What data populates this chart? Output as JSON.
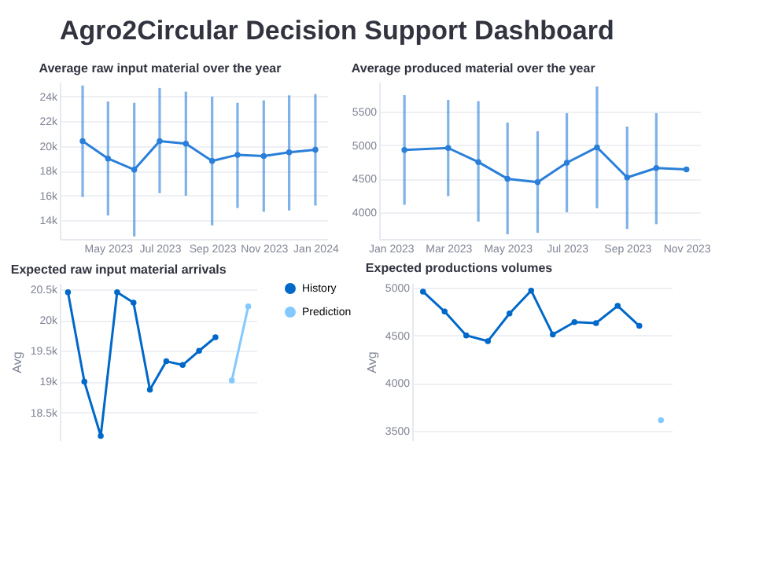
{
  "chart_data": [
    {
      "type": "other",
      "title": "Agro2Circular Decision Support Dashboard"
    },
    {
      "type": "line",
      "title": "Average raw input material over the year",
      "x": [
        "2023-04",
        "2023-05",
        "2023-06",
        "2023-07",
        "2023-08",
        "2023-09",
        "2023-10",
        "2023-11",
        "2023-12",
        "2024-01"
      ],
      "values": [
        20400,
        19000,
        18100,
        20400,
        20200,
        18800,
        19300,
        19200,
        19500,
        19700
      ],
      "errors": [
        [
          15900,
          24900
        ],
        [
          14400,
          23600
        ],
        [
          12700,
          23500
        ],
        [
          16200,
          24700
        ],
        [
          16000,
          24400
        ],
        [
          13600,
          24000
        ],
        [
          15000,
          23500
        ],
        [
          14700,
          23700
        ],
        [
          14800,
          24100
        ],
        [
          15200,
          24200
        ]
      ],
      "color": "#2a7fd9",
      "marker": "circle",
      "grid": "y",
      "xlim": [
        "2023-03-05",
        "2024-01-15"
      ],
      "xticks": [
        {
          "value": "2023-05",
          "label": "May 2023"
        },
        {
          "value": "2023-07",
          "label": "Jul 2023"
        },
        {
          "value": "2023-09",
          "label": "Sep 2023"
        },
        {
          "value": "2023-11",
          "label": "Nov 2023"
        },
        {
          "value": "2024-01",
          "label": "Jan 2024"
        }
      ],
      "ylim": [
        12500,
        25200
      ],
      "yticks": [
        {
          "value": 14000,
          "label": "14k"
        },
        {
          "value": 16000,
          "label": "16k"
        },
        {
          "value": 18000,
          "label": "18k"
        },
        {
          "value": 20000,
          "label": "20k"
        },
        {
          "value": 22000,
          "label": "22k"
        },
        {
          "value": 24000,
          "label": "24k"
        }
      ]
    },
    {
      "type": "line",
      "title": "Average produced material over the year",
      "x": [
        "2023-01-15",
        "2023-03",
        "2023-04",
        "2023-05",
        "2023-06",
        "2023-07",
        "2023-08",
        "2023-09",
        "2023-10",
        "2023-11"
      ],
      "values": [
        4930,
        4960,
        4750,
        4500,
        4450,
        4740,
        4970,
        4520,
        4660,
        4640
      ],
      "errors": [
        [
          4110,
          5750
        ],
        [
          4240,
          5680
        ],
        [
          3860,
          5660
        ],
        [
          3670,
          5340
        ],
        [
          3690,
          5210
        ],
        [
          4000,
          5480
        ],
        [
          4060,
          5880
        ],
        [
          3750,
          5280
        ],
        [
          3820,
          5480
        ],
        null
      ],
      "color": "#2a7fd9",
      "marker": "circle",
      "grid": "y",
      "xlim": [
        "2022-12-20",
        "2023-11-15"
      ],
      "xticks": [
        {
          "value": "2023-01",
          "label": "Jan 2023"
        },
        {
          "value": "2023-03",
          "label": "Mar 2023"
        },
        {
          "value": "2023-05",
          "label": "May 2023"
        },
        {
          "value": "2023-07",
          "label": "Jul 2023"
        },
        {
          "value": "2023-09",
          "label": "Sep 2023"
        },
        {
          "value": "2023-11",
          "label": "Nov 2023"
        }
      ],
      "ylim": [
        3600,
        5950
      ],
      "yticks": [
        4000,
        4500,
        5000,
        5500
      ]
    },
    {
      "type": "line",
      "title": "Expected raw input material arrivals",
      "ylabel": "Avg",
      "categories": [
        null,
        null,
        null,
        null,
        null,
        null,
        null,
        null,
        null,
        null,
        null,
        null
      ],
      "series": [
        {
          "name": "History",
          "color": "#0068c9",
          "values": [
            20450,
            19000,
            18120,
            20450,
            20280,
            18870,
            19330,
            19270,
            19500,
            19720,
            null,
            null
          ]
        },
        {
          "name": "Prediction",
          "color": "#83c9ff",
          "values": [
            null,
            null,
            null,
            null,
            null,
            null,
            null,
            null,
            null,
            null,
            19020,
            20220
          ]
        }
      ],
      "marker": "circle",
      "grid": "y",
      "legend": "right",
      "ylim": [
        18050,
        20600
      ],
      "yticks": [
        {
          "value": 18500,
          "label": "18.5k"
        },
        {
          "value": 19000,
          "label": "19k"
        },
        {
          "value": 19500,
          "label": "19.5k"
        },
        {
          "value": 20000,
          "label": "20k"
        },
        {
          "value": 20500,
          "label": "20.5k"
        }
      ]
    },
    {
      "type": "line",
      "title": "Expected productions volumes",
      "ylabel": "Avg",
      "categories": [
        null,
        null,
        null,
        null,
        null,
        null,
        null,
        null,
        null,
        null,
        null,
        null
      ],
      "series": [
        {
          "color": "#0068c9",
          "values": [
            4960,
            4750,
            4500,
            4440,
            4730,
            4970,
            4510,
            4640,
            4630,
            4810,
            4600,
            null
          ]
        },
        {
          "color": "#83c9ff",
          "values": [
            null,
            null,
            null,
            null,
            null,
            null,
            null,
            null,
            null,
            null,
            null,
            3610
          ]
        }
      ],
      "marker": "circle",
      "grid": "y",
      "ylim": [
        3400,
        5050
      ],
      "yticks": [
        3500,
        4000,
        4500,
        5000
      ]
    }
  ]
}
